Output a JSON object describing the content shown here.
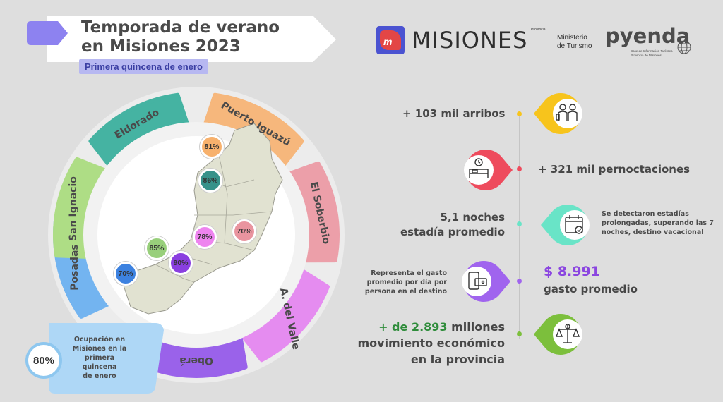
{
  "header": {
    "title_line1": "Temporada de verano",
    "title_line2": "en Misiones 2023",
    "subtitle": "Primera quincena de enero"
  },
  "logos": {
    "misiones": "MISIONES",
    "misiones_small": "Provincia",
    "ministerio_line1": "Ministerio",
    "ministerio_line2": "de Turismo",
    "pyenda": "pyenda",
    "pyenda_line1": "Base de Información Turística",
    "pyenda_line2": "Provincia de Misiones"
  },
  "regions": [
    {
      "name": "Eldorado",
      "color": "#45b3a2"
    },
    {
      "name": "Puerto Iguazú",
      "color": "#f6b77c"
    },
    {
      "name": "El Soberbio",
      "color": "#ec9fa9"
    },
    {
      "name": "A. del Valle",
      "color": "#e58cf0"
    },
    {
      "name": "Oberá",
      "color": "#9a62ea"
    },
    {
      "name": "Posadas",
      "color": "#73b4f0"
    },
    {
      "name": "San Ignacio",
      "color": "#aedd85"
    }
  ],
  "occupancy": [
    {
      "value": "81%",
      "color": "#f7b16d"
    },
    {
      "value": "86%",
      "color": "#37928a"
    },
    {
      "value": "78%",
      "color": "#ee84ef"
    },
    {
      "value": "70%",
      "color": "#e9949f"
    },
    {
      "value": "85%",
      "color": "#98cf7b"
    },
    {
      "value": "90%",
      "color": "#8a3fe0"
    },
    {
      "value": "70%",
      "color": "#3d82e0"
    }
  ],
  "overall": {
    "value": "80%",
    "caption_l1": "Ocupación en",
    "caption_l2": "Misiones en la",
    "caption_l3": "primera quincena",
    "caption_l4": "de enero"
  },
  "stats": {
    "arribos": "+ 103 mil arribos",
    "pernoctaciones": "+ 321 mil pernoctaciones",
    "noches_l1": "5,1 noches",
    "noches_l2": "estadía promedio",
    "noches_note_l1": "Se detectaron estadías",
    "noches_note_l2": "prolongadas, superando las 7",
    "noches_note_l3": "noches, destino vacacional",
    "gasto_note_l1": "Representa el gasto",
    "gasto_note_l2": "promedio por día por",
    "gasto_note_l3": "persona en el destino",
    "gasto_value": "$ 8.991",
    "gasto_label": "gasto promedio",
    "mov_prefix": "+ de 2.893",
    "mov_suffix": " millones",
    "mov_l2": "movimiento económico",
    "mov_l3": "en la provincia"
  },
  "colors": {
    "arribos": "#f7c41c",
    "pernoctaciones": "#ee4b5d",
    "noches": "#69e4c7",
    "gasto": "#a064ee",
    "movimiento": "#7cbf3c",
    "gasto_text": "#8b46e0",
    "mov_text": "#2e8c3a"
  },
  "icons": {
    "arribos": "travelers-icon",
    "pernoctaciones": "hotel-bed-icon",
    "noches": "calendar-check-icon",
    "gasto": "wallet-phone-icon",
    "movimiento": "money-scale-icon"
  }
}
